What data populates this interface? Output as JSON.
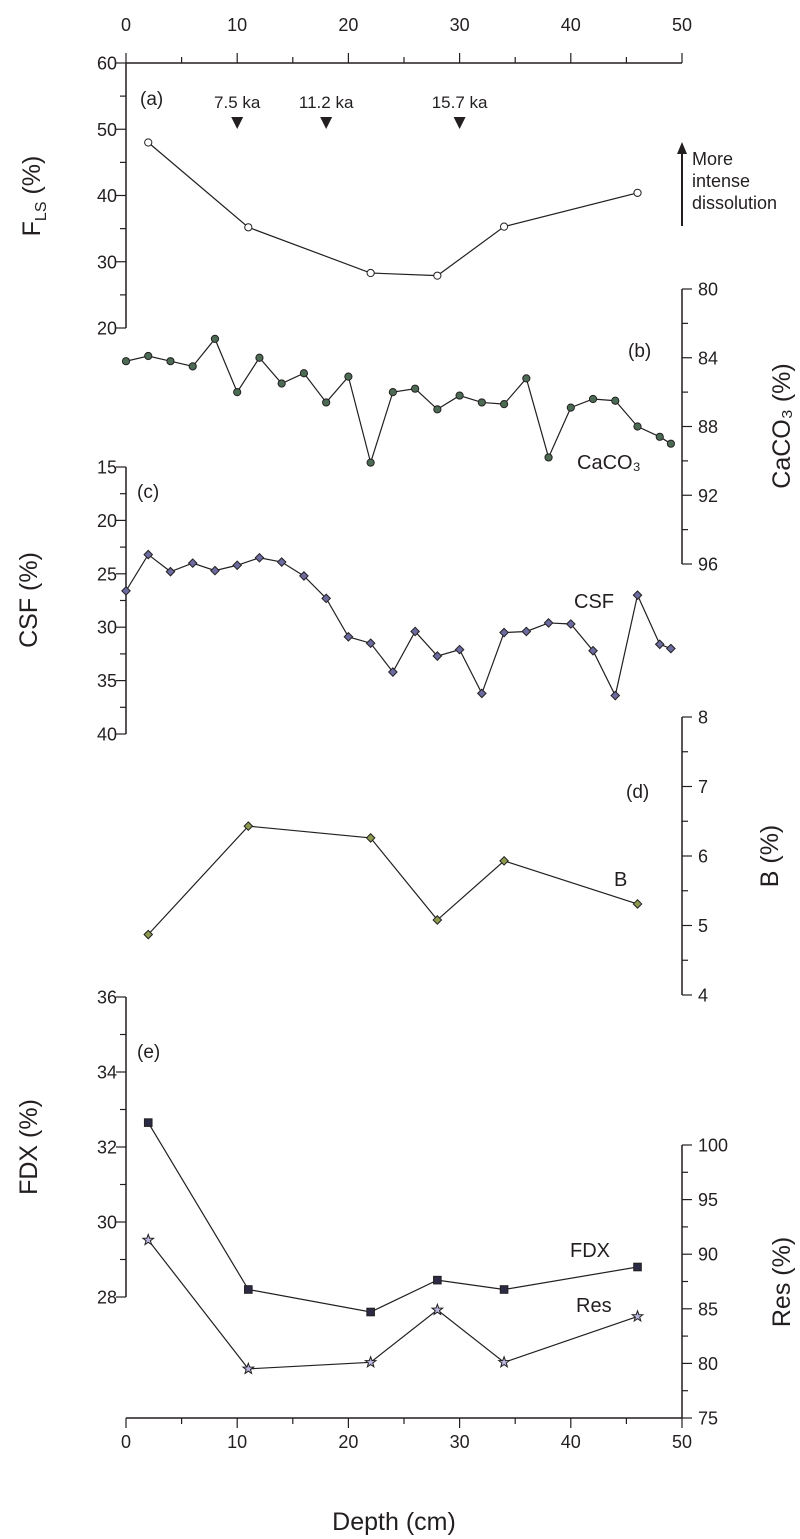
{
  "chart_data": {
    "type": "line",
    "x_axis": {
      "label": "Depth (cm)",
      "range": [
        0,
        50
      ],
      "ticks": [
        0,
        10,
        20,
        30,
        40,
        50
      ],
      "tick_labels": [
        "0",
        "10",
        "20",
        "30",
        "40",
        "50"
      ]
    },
    "panels": [
      {
        "id": "a",
        "panel_label": "(a)",
        "y_label": "F",
        "y_label_sub": "LS",
        "y_label_suffix": " (%)",
        "y_axis_side": "left",
        "y_range": [
          20,
          60
        ],
        "y_ticks": [
          20,
          30,
          40,
          50,
          60
        ],
        "y_tick_labels": [
          "20",
          "30",
          "40",
          "50",
          "60"
        ],
        "series": [
          {
            "name": "F",
            "name_sub": "LS",
            "marker": "circle",
            "marker_color": "#ffffff",
            "x": [
              2,
              11,
              22,
              28,
              34,
              46
            ],
            "y": [
              48.0,
              35.2,
              28.3,
              27.9,
              35.3,
              40.4
            ]
          }
        ],
        "annotations": [
          {
            "text": "7.5 ka",
            "x": 10
          },
          {
            "text": "11.2 ka",
            "x": 18
          },
          {
            "text": "15.7 ka",
            "x": 30
          }
        ],
        "arrow_note": [
          "More",
          "intense",
          "dissolution"
        ]
      },
      {
        "id": "b",
        "panel_label": "(b)",
        "y_label": "CaCO₃ (%)",
        "y_axis_side": "right",
        "y_range": [
          80,
          96
        ],
        "y_inverted": true,
        "y_ticks": [
          80,
          84,
          88,
          92,
          96
        ],
        "y_tick_labels": [
          "80",
          "84",
          "88",
          "92",
          "96"
        ],
        "series": [
          {
            "name": "CaCO₃",
            "marker": "circle",
            "marker_color": "#4c6b55",
            "x": [
              0,
              2,
              4,
              6,
              8,
              10,
              12,
              14,
              16,
              18,
              20,
              22,
              24,
              26,
              28,
              30,
              32,
              34,
              36,
              38,
              40,
              42,
              44,
              46,
              48,
              49
            ],
            "y": [
              84.2,
              83.9,
              84.2,
              84.5,
              82.9,
              86.0,
              84.0,
              85.5,
              84.9,
              86.6,
              85.1,
              90.1,
              86.0,
              85.8,
              87.0,
              86.2,
              86.6,
              86.7,
              85.2,
              89.8,
              86.9,
              86.4,
              86.5,
              88.0,
              88.6,
              89.0
            ]
          }
        ]
      },
      {
        "id": "c",
        "panel_label": "(c)",
        "y_label": "CSF (%)",
        "y_axis_side": "left",
        "y_range": [
          15,
          40
        ],
        "y_inverted": true,
        "y_ticks": [
          15,
          20,
          25,
          30,
          35,
          40
        ],
        "y_tick_labels": [
          "15",
          "20",
          "25",
          "30",
          "35",
          "40"
        ],
        "series": [
          {
            "name": "CSF",
            "marker": "diamond",
            "marker_color": "#6b6ba0",
            "x": [
              0,
              2,
              4,
              6,
              8,
              10,
              12,
              14,
              16,
              18,
              20,
              22,
              24,
              26,
              28,
              30,
              32,
              34,
              36,
              38,
              40,
              42,
              44,
              46,
              48,
              49
            ],
            "y": [
              26.6,
              23.2,
              24.8,
              24.0,
              24.7,
              24.2,
              23.5,
              23.9,
              25.2,
              27.3,
              30.9,
              31.5,
              34.2,
              30.4,
              32.7,
              32.1,
              36.2,
              30.5,
              30.4,
              29.6,
              29.7,
              32.2,
              36.4,
              27.0,
              31.6,
              32.0
            ]
          }
        ]
      },
      {
        "id": "d",
        "panel_label": "(d)",
        "y_label": "B (%)",
        "y_axis_side": "right",
        "y_range": [
          4,
          8
        ],
        "y_ticks": [
          4,
          5,
          6,
          7,
          8
        ],
        "y_tick_labels": [
          "4",
          "5",
          "6",
          "7",
          "8"
        ],
        "series": [
          {
            "name": "B",
            "marker": "diamond",
            "marker_color": "#8a9a4e",
            "x": [
              2,
              11,
              22,
              28,
              34,
              46
            ],
            "y": [
              4.87,
              6.43,
              6.26,
              5.08,
              5.93,
              5.31
            ]
          }
        ]
      },
      {
        "id": "e",
        "panel_label": "(e)",
        "y_label": "FDX (%)",
        "y_axis_side": "left",
        "y_range": [
          28,
          36
        ],
        "y_ticks": [
          28,
          30,
          32,
          34,
          36
        ],
        "y_tick_labels": [
          "28",
          "30",
          "32",
          "34",
          "36"
        ],
        "series": [
          {
            "name": "FDX",
            "marker": "square",
            "marker_color": "#2b2b45",
            "x": [
              2,
              11,
              22,
              28,
              34,
              46
            ],
            "y": [
              32.65,
              28.2,
              27.6,
              28.45,
              28.2,
              28.8
            ]
          }
        ]
      },
      {
        "id": "e2",
        "y_label": "Res (%)",
        "y_axis_side": "right",
        "y_range": [
          75,
          100
        ],
        "y_ticks": [
          75,
          80,
          85,
          90,
          95,
          100
        ],
        "y_tick_labels": [
          "75",
          "80",
          "85",
          "90",
          "95",
          "100"
        ],
        "series": [
          {
            "name": "Res",
            "marker": "star",
            "marker_color": "#b8b8e0",
            "x": [
              2,
              11,
              22,
              28,
              34,
              46
            ],
            "y": [
              91.3,
              79.5,
              80.1,
              84.9,
              80.1,
              84.3
            ]
          }
        ]
      }
    ]
  }
}
